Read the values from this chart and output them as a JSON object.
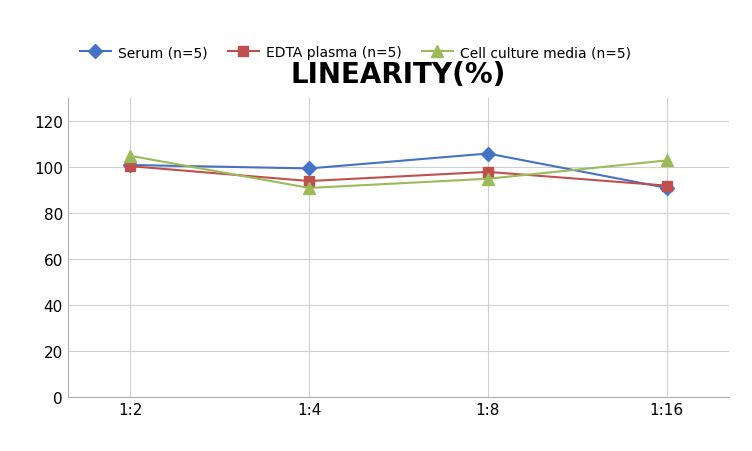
{
  "title": "LINEARITY(%)",
  "x_labels": [
    "1:2",
    "1:4",
    "1:8",
    "1:16"
  ],
  "x_positions": [
    0,
    1,
    2,
    3
  ],
  "series": [
    {
      "label": "Serum (n=5)",
      "values": [
        101,
        99.5,
        106,
        91
      ],
      "color": "#4472C4",
      "marker": "D",
      "marker_size": 7,
      "linewidth": 1.5
    },
    {
      "label": "EDTA plasma (n=5)",
      "values": [
        100.5,
        94,
        98,
        92
      ],
      "color": "#C0504D",
      "marker": "s",
      "marker_size": 7,
      "linewidth": 1.5
    },
    {
      "label": "Cell culture media (n=5)",
      "values": [
        105,
        91,
        95,
        103
      ],
      "color": "#9BBB59",
      "marker": "^",
      "marker_size": 8,
      "linewidth": 1.5
    }
  ],
  "ylim": [
    0,
    130
  ],
  "yticks": [
    0,
    20,
    40,
    60,
    80,
    100,
    120
  ],
  "background_color": "#ffffff",
  "grid_color": "#d0d0d0",
  "title_fontsize": 20,
  "legend_fontsize": 10,
  "tick_fontsize": 11
}
